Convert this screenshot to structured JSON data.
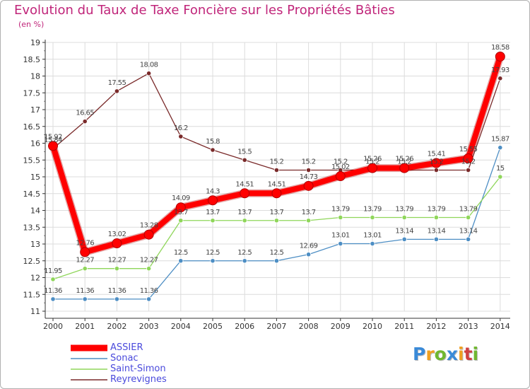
{
  "chart_data": {
    "type": "line",
    "title": "Evolution du Taux de Taxe Foncière sur les Propriétés Bâties",
    "subtitle": "(en %)",
    "xlabel": "",
    "ylabel": "",
    "ylim": [
      11,
      19
    ],
    "yticks": [
      "11",
      "11.5",
      "12",
      "12.5",
      "13",
      "13.5",
      "14",
      "14.5",
      "15",
      "15.5",
      "16",
      "16.5",
      "17",
      "17.5",
      "18",
      "18.5",
      "19"
    ],
    "x": [
      "2000",
      "2001",
      "2002",
      "2003",
      "2004",
      "2005",
      "2006",
      "2007",
      "2008",
      "2009",
      "2010",
      "2011",
      "2012",
      "2013",
      "2014"
    ],
    "series": [
      {
        "name": "ASSIER",
        "color": "#ff0000",
        "emphasis": true,
        "values": [
          15.92,
          12.76,
          13.02,
          13.28,
          14.09,
          14.3,
          14.51,
          14.51,
          14.73,
          15.02,
          15.26,
          15.26,
          15.41,
          15.55,
          18.58
        ],
        "labels": [
          "15.92",
          "12.76",
          "13.02",
          "13.28",
          "14.09",
          "14.3",
          "14.51",
          "14.51",
          "14.73",
          "15.02",
          "15.26",
          "15.26",
          "15.41",
          "15.55",
          "18.58"
        ]
      },
      {
        "name": "Sonac",
        "color": "#4d8ec4",
        "values": [
          11.36,
          11.36,
          11.36,
          11.36,
          12.5,
          12.5,
          12.5,
          12.5,
          12.69,
          13.01,
          13.01,
          13.14,
          13.14,
          13.14,
          15.87
        ],
        "labels": [
          "11.36",
          "11.36",
          "11.36",
          "11.36",
          "12.5",
          "12.5",
          "12.5",
          "12.5",
          "12.69",
          "13.01",
          "13.01",
          "13.14",
          "13.14",
          "13.14",
          "15.87"
        ]
      },
      {
        "name": "Saint-Simon",
        "color": "#8fd65a",
        "values": [
          11.95,
          12.27,
          12.27,
          12.27,
          13.7,
          13.7,
          13.7,
          13.7,
          13.7,
          13.79,
          13.79,
          13.79,
          13.79,
          13.79,
          15.0
        ],
        "labels": [
          "11.95",
          "12.27",
          "12.27",
          "12.27",
          "13.7",
          "13.7",
          "13.7",
          "13.7",
          "13.7",
          "13.79",
          "13.79",
          "13.79",
          "13.79",
          "13.79",
          "15"
        ]
      },
      {
        "name": "Reyrevignes",
        "color": "#7a2a2a",
        "values": [
          15.84,
          16.65,
          17.55,
          18.08,
          16.2,
          15.8,
          15.5,
          15.2,
          15.2,
          15.2,
          15.2,
          15.2,
          15.2,
          15.2,
          17.93
        ],
        "labels": [
          "15.84",
          "16.65",
          "17.55",
          "18.08",
          "16.2",
          "15.8",
          "15.5",
          "15.2",
          "15.2",
          "15.2",
          "15.2",
          "15.2",
          "15.2",
          "15.2",
          "17.93"
        ]
      }
    ],
    "legend_position": "bottom-left"
  },
  "logo": {
    "letters": [
      "P",
      "r",
      "o",
      "x",
      "i",
      "t",
      "i"
    ],
    "colors": [
      "#3a8ad8",
      "#f0a020",
      "#70b830",
      "#3a8ad8",
      "#f0a020",
      "#d04040",
      "#70b830"
    ]
  }
}
